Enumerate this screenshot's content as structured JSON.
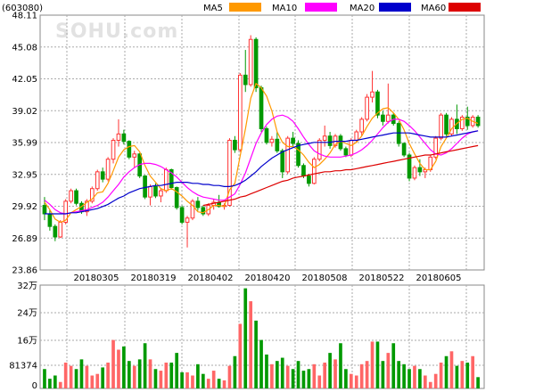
{
  "header": {
    "code": "(603080)",
    "watermark": "SOHU.com",
    "legend": [
      {
        "name": "MA5",
        "color": "#ff9900"
      },
      {
        "name": "MA10",
        "color": "#ff00ff"
      },
      {
        "name": "MA20",
        "color": "#0000cc"
      },
      {
        "name": "MA60",
        "color": "#dd0000"
      }
    ]
  },
  "chart_data": [
    {
      "type": "candlestick",
      "y_ticks": [
        "48.11",
        "45.08",
        "42.05",
        "39.02",
        "35.99",
        "32.95",
        "29.92",
        "26.89",
        "23.86"
      ],
      "x_labels": [
        "20180305",
        "20180319",
        "20180402",
        "20180420",
        "20180508",
        "20180522",
        "20180605"
      ],
      "ylim": [
        23.86,
        48.11
      ],
      "grid": true,
      "colors": {
        "up": "#ff3333",
        "down": "#009900"
      },
      "candles": [
        [
          30.0,
          30.8,
          28.6,
          29.2
        ],
        [
          29.2,
          29.6,
          27.6,
          28.0
        ],
        [
          28.0,
          28.2,
          26.6,
          27.0
        ],
        [
          27.0,
          28.6,
          26.9,
          28.4
        ],
        [
          28.4,
          30.6,
          28.2,
          30.4
        ],
        [
          30.4,
          31.6,
          30.2,
          31.4
        ],
        [
          31.4,
          31.6,
          30.0,
          30.2
        ],
        [
          30.2,
          30.4,
          29.2,
          29.4
        ],
        [
          29.4,
          30.6,
          29.0,
          30.4
        ],
        [
          30.4,
          31.8,
          30.2,
          31.6
        ],
        [
          31.6,
          33.4,
          31.4,
          33.2
        ],
        [
          33.2,
          33.6,
          32.2,
          32.5
        ],
        [
          32.5,
          34.6,
          32.3,
          34.4
        ],
        [
          34.4,
          36.4,
          34.0,
          36.2
        ],
        [
          36.2,
          38.2,
          35.6,
          36.8
        ],
        [
          36.8,
          37.2,
          35.8,
          36.1
        ],
        [
          36.1,
          36.2,
          34.4,
          34.6
        ],
        [
          34.6,
          35.2,
          33.6,
          34.9
        ],
        [
          34.9,
          35.0,
          32.6,
          32.8
        ],
        [
          32.8,
          32.9,
          30.6,
          30.8
        ],
        [
          30.8,
          32.0,
          30.0,
          31.8
        ],
        [
          31.8,
          32.1,
          30.7,
          30.9
        ],
        [
          30.9,
          31.6,
          30.3,
          31.4
        ],
        [
          31.4,
          33.6,
          31.2,
          33.4
        ],
        [
          33.4,
          33.5,
          31.5,
          31.7
        ],
        [
          31.7,
          31.8,
          29.6,
          29.8
        ],
        [
          29.8,
          30.0,
          28.2,
          28.4
        ],
        [
          28.4,
          29.0,
          26.0,
          28.8
        ],
        [
          28.8,
          30.6,
          28.6,
          30.4
        ],
        [
          30.4,
          30.8,
          29.5,
          29.8
        ],
        [
          29.8,
          30.0,
          29.0,
          29.2
        ],
        [
          29.2,
          30.2,
          29.0,
          30.0
        ],
        [
          30.0,
          30.6,
          29.6,
          30.3
        ],
        [
          30.3,
          31.0,
          29.8,
          29.9
        ],
        [
          29.9,
          30.2,
          29.6,
          30.0
        ],
        [
          30.0,
          36.4,
          29.9,
          36.2
        ],
        [
          36.2,
          36.6,
          35.0,
          35.3
        ],
        [
          35.3,
          42.6,
          35.1,
          42.4
        ],
        [
          42.4,
          44.8,
          40.8,
          41.5
        ],
        [
          41.5,
          46.2,
          41.3,
          45.8
        ],
        [
          45.8,
          46.0,
          40.8,
          41.2
        ],
        [
          41.2,
          41.4,
          37.0,
          37.3
        ],
        [
          37.3,
          37.5,
          35.8,
          36.0
        ],
        [
          36.0,
          36.6,
          35.6,
          36.3
        ],
        [
          36.3,
          37.0,
          35.0,
          35.2
        ],
        [
          35.2,
          35.4,
          32.6,
          33.2
        ],
        [
          33.2,
          36.6,
          33.0,
          36.4
        ],
        [
          36.4,
          37.0,
          35.6,
          35.9
        ],
        [
          35.9,
          36.2,
          33.6,
          33.8
        ],
        [
          33.8,
          34.0,
          32.6,
          32.8
        ],
        [
          32.8,
          33.0,
          31.8,
          32.1
        ],
        [
          32.1,
          34.6,
          32.0,
          34.4
        ],
        [
          34.4,
          36.4,
          34.2,
          36.2
        ],
        [
          36.2,
          37.6,
          35.6,
          36.6
        ],
        [
          36.6,
          37.0,
          35.4,
          35.7
        ],
        [
          35.7,
          36.8,
          35.5,
          36.6
        ],
        [
          36.6,
          36.8,
          35.2,
          35.4
        ],
        [
          35.4,
          35.6,
          34.6,
          34.8
        ],
        [
          34.8,
          36.4,
          34.6,
          36.2
        ],
        [
          36.2,
          37.2,
          36.0,
          37.0
        ],
        [
          37.0,
          38.4,
          36.6,
          38.2
        ],
        [
          38.2,
          40.6,
          38.0,
          40.3
        ],
        [
          40.3,
          42.8,
          39.8,
          40.8
        ],
        [
          40.8,
          41.0,
          38.3,
          38.6
        ],
        [
          38.6,
          39.0,
          37.6,
          38.0
        ],
        [
          38.0,
          41.6,
          37.8,
          38.6
        ],
        [
          38.6,
          38.8,
          37.6,
          37.8
        ],
        [
          37.8,
          38.0,
          35.6,
          35.9
        ],
        [
          35.9,
          36.0,
          34.6,
          34.8
        ],
        [
          34.8,
          35.0,
          32.3,
          32.6
        ],
        [
          32.6,
          33.8,
          32.4,
          33.6
        ],
        [
          33.6,
          34.4,
          32.8,
          33.2
        ],
        [
          33.2,
          33.6,
          32.6,
          33.4
        ],
        [
          33.4,
          34.8,
          33.2,
          34.6
        ],
        [
          34.6,
          36.6,
          34.4,
          36.4
        ],
        [
          36.4,
          38.8,
          36.2,
          38.6
        ],
        [
          38.6,
          38.8,
          36.6,
          36.8
        ],
        [
          36.8,
          38.4,
          36.6,
          38.2
        ],
        [
          38.2,
          39.6,
          36.8,
          37.3
        ],
        [
          37.3,
          38.6,
          37.1,
          38.4
        ],
        [
          38.4,
          39.4,
          37.2,
          37.6
        ],
        [
          37.6,
          38.6,
          37.4,
          38.4
        ],
        [
          38.4,
          38.6,
          37.4,
          37.6
        ]
      ],
      "ma5": [
        30.3,
        29.6,
        28.7,
        28.4,
        28.6,
        29.3,
        29.6,
        29.9,
        30.3,
        30.6,
        31.2,
        31.3,
        32.1,
        33.3,
        34.6,
        35.3,
        35.6,
        35.7,
        35.1,
        33.8,
        32.8,
        32.2,
        31.6,
        31.4,
        31.6,
        31.3,
        30.9,
        30.4,
        30.0,
        29.4,
        29.3,
        29.6,
        30.0,
        30.0,
        29.9,
        31.5,
        32.1,
        34.7,
        37.3,
        40.2,
        41.6,
        41.2,
        40.4,
        39.0,
        37.0,
        36.0,
        35.6,
        35.6,
        35.3,
        34.8,
        34.1,
        33.6,
        33.9,
        34.4,
        35.0,
        35.8,
        36.1,
        35.9,
        35.7,
        36.0,
        36.6,
        37.5,
        38.3,
        38.8,
        39.2,
        39.3,
        38.8,
        38.2,
        37.2,
        35.9,
        34.9,
        34.0,
        33.4,
        33.4,
        34.2,
        35.6,
        36.4,
        37.3,
        37.8,
        38.2,
        38.3,
        38.0,
        37.8
      ],
      "ma10": [
        30.5,
        30.1,
        29.6,
        29.3,
        29.2,
        29.3,
        29.4,
        29.5,
        29.6,
        29.8,
        30.0,
        30.3,
        30.8,
        31.4,
        32.0,
        32.7,
        33.2,
        33.6,
        33.9,
        34.0,
        34.0,
        33.9,
        33.7,
        33.4,
        33.1,
        32.7,
        32.2,
        31.7,
        31.3,
        31.0,
        30.8,
        30.7,
        30.6,
        30.5,
        30.5,
        30.8,
        31.1,
        32.0,
        33.1,
        34.5,
        35.9,
        36.9,
        37.7,
        38.2,
        38.5,
        38.6,
        38.4,
        38.0,
        37.3,
        36.5,
        35.8,
        35.2,
        34.9,
        34.7,
        34.6,
        34.6,
        34.6,
        34.7,
        34.8,
        35.0,
        35.3,
        35.7,
        36.2,
        36.8,
        37.4,
        37.9,
        38.2,
        38.2,
        38.0,
        37.6,
        37.1,
        36.5,
        35.9,
        35.3,
        34.9,
        34.8,
        35.0,
        35.4,
        35.9,
        36.4,
        36.8,
        37.0,
        37.1
      ],
      "ma20": [
        29.2,
        29.2,
        29.2,
        29.2,
        29.2,
        29.3,
        29.3,
        29.4,
        29.5,
        29.6,
        29.7,
        29.9,
        30.1,
        30.4,
        30.7,
        30.9,
        31.2,
        31.4,
        31.6,
        31.7,
        31.8,
        31.9,
        31.9,
        32.0,
        32.1,
        32.2,
        32.2,
        32.2,
        32.1,
        32.1,
        32.0,
        32.0,
        31.9,
        31.9,
        31.8,
        31.8,
        31.9,
        32.1,
        32.4,
        32.8,
        33.2,
        33.7,
        34.1,
        34.5,
        34.8,
        35.1,
        35.3,
        35.5,
        35.7,
        35.8,
        35.9,
        36.0,
        36.0,
        36.0,
        36.0,
        36.1,
        36.1,
        36.1,
        36.2,
        36.2,
        36.3,
        36.4,
        36.5,
        36.6,
        36.7,
        36.8,
        36.9,
        36.9,
        36.9,
        36.9,
        36.8,
        36.7,
        36.6,
        36.5,
        36.5,
        36.5,
        36.5,
        36.6,
        36.7,
        36.8,
        36.9,
        37.0,
        37.1
      ],
      "ma60": [
        null,
        null,
        null,
        null,
        null,
        null,
        null,
        null,
        null,
        null,
        null,
        null,
        null,
        null,
        null,
        null,
        null,
        null,
        null,
        null,
        null,
        null,
        null,
        null,
        null,
        null,
        null,
        null,
        null,
        null,
        30.0,
        30.1,
        30.2,
        30.3,
        30.4,
        30.5,
        30.6,
        30.8,
        30.9,
        31.1,
        31.3,
        31.5,
        31.7,
        31.9,
        32.1,
        32.3,
        32.4,
        32.6,
        32.7,
        32.8,
        32.9,
        33.0,
        33.1,
        33.2,
        33.2,
        33.3,
        33.3,
        33.4,
        33.4,
        33.5,
        33.6,
        33.7,
        33.8,
        33.9,
        34.0,
        34.1,
        34.2,
        34.3,
        34.4,
        34.5,
        34.6,
        34.7,
        34.8,
        34.8,
        34.9,
        35.0,
        35.1,
        35.2,
        35.3,
        35.4,
        35.5,
        35.6,
        35.7
      ]
    },
    {
      "type": "bar",
      "y_ticks": [
        "32万",
        "24万",
        "16万",
        "81374",
        "0"
      ],
      "ylim": [
        0,
        320000
      ],
      "volumes": [
        60000,
        30000,
        40000,
        20000,
        80000,
        70000,
        60000,
        90000,
        70000,
        40000,
        45000,
        65000,
        80000,
        150000,
        120000,
        130000,
        85000,
        70000,
        90000,
        140000,
        90000,
        60000,
        55000,
        80000,
        80000,
        110000,
        50000,
        50000,
        40000,
        75000,
        45000,
        30000,
        55000,
        30000,
        25000,
        70000,
        100000,
        200000,
        310000,
        270000,
        210000,
        150000,
        105000,
        75000,
        85000,
        95000,
        70000,
        60000,
        85000,
        55000,
        60000,
        75000,
        40000,
        80000,
        110000,
        90000,
        140000,
        60000,
        45000,
        40000,
        75000,
        85000,
        145000,
        145000,
        85000,
        110000,
        140000,
        85000,
        75000,
        60000,
        70000,
        60000,
        40000,
        20000,
        45000,
        80000,
        100000,
        115000,
        70000,
        85000,
        80000,
        100000,
        35000
      ]
    }
  ]
}
